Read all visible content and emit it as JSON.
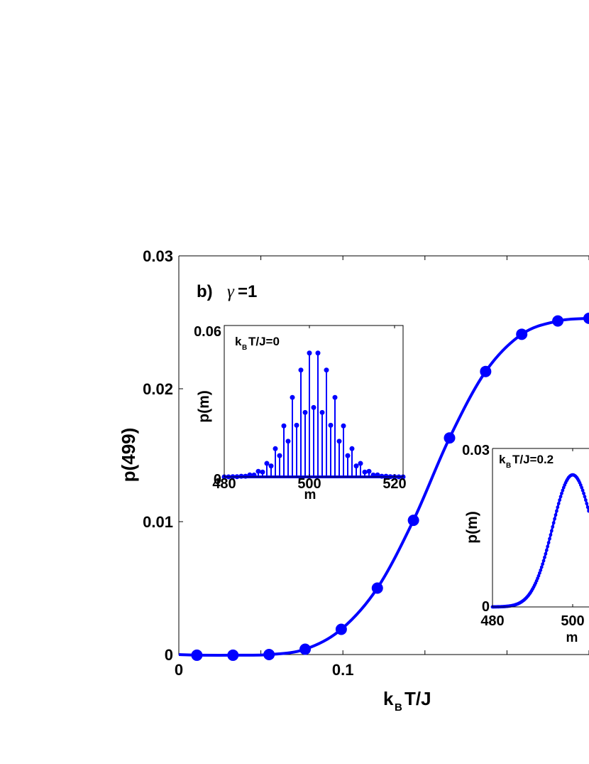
{
  "chart_data": [
    {
      "type": "line",
      "panel_label": "b)",
      "panel_symbol": "γ",
      "panel_value": "=1",
      "xlabel_main": "k",
      "xlabel_sub": "B",
      "xlabel_rest": "T/J",
      "ylabel": "p(499)",
      "xlim": [
        0,
        0.25
      ],
      "ylim": [
        0,
        0.03
      ],
      "xticks": [
        0,
        0.05,
        0.1,
        0.15,
        0.2,
        0.25
      ],
      "xtick_labels": [
        "0",
        "",
        "0.1",
        "",
        "",
        ""
      ],
      "yticks": [
        0,
        0.01,
        0.02,
        0.03
      ],
      "ytick_labels": [
        "0",
        "0.01",
        "0.02",
        "0.03"
      ],
      "color": "#0000ff",
      "series": [
        {
          "x": [
            0.011,
            0.033,
            0.055,
            0.077,
            0.099,
            0.121,
            0.143,
            0.165,
            0.187,
            0.209,
            0.231,
            0.25
          ],
          "y": [
            -5e-05,
            -5e-05,
            0.0,
            0.0004,
            0.0019,
            0.005,
            0.0101,
            0.0163,
            0.0213,
            0.0241,
            0.0251,
            0.0253
          ]
        }
      ]
    },
    {
      "type": "scatter",
      "label_main": "k",
      "label_sub": "B",
      "label_rest": "T/J=0",
      "xlabel": "m",
      "ylabel": "p(m)",
      "xlim": [
        480,
        522
      ],
      "ylim": [
        0,
        0.06
      ],
      "xtick_labels": [
        "480",
        "500",
        "520"
      ],
      "ytick_labels": [
        "0",
        "0.06"
      ],
      "xticks": [
        480,
        500,
        520
      ],
      "yticks": [
        0,
        0.06
      ],
      "distribution": {
        "center": 501,
        "sigma": 5.2,
        "peak": 0.05,
        "even_scale": 1.0,
        "odd_scale": 0.55
      },
      "color": "#0000ff"
    },
    {
      "type": "scatter",
      "label_main": "k",
      "label_sub": "B",
      "label_rest": "T/J=0.2",
      "xlabel": "m",
      "ylabel": "p(m)",
      "xlim": [
        480,
        520
      ],
      "ylim": [
        0,
        0.03
      ],
      "xtick_labels": [
        "480",
        "500"
      ],
      "ytick_labels": [
        "0",
        "0.03"
      ],
      "xticks": [
        480,
        500
      ],
      "yticks": [
        0,
        0.03
      ],
      "distribution": {
        "center": 500,
        "sigma": 5.0,
        "peak": 0.025
      },
      "color": "#0000ff"
    }
  ]
}
